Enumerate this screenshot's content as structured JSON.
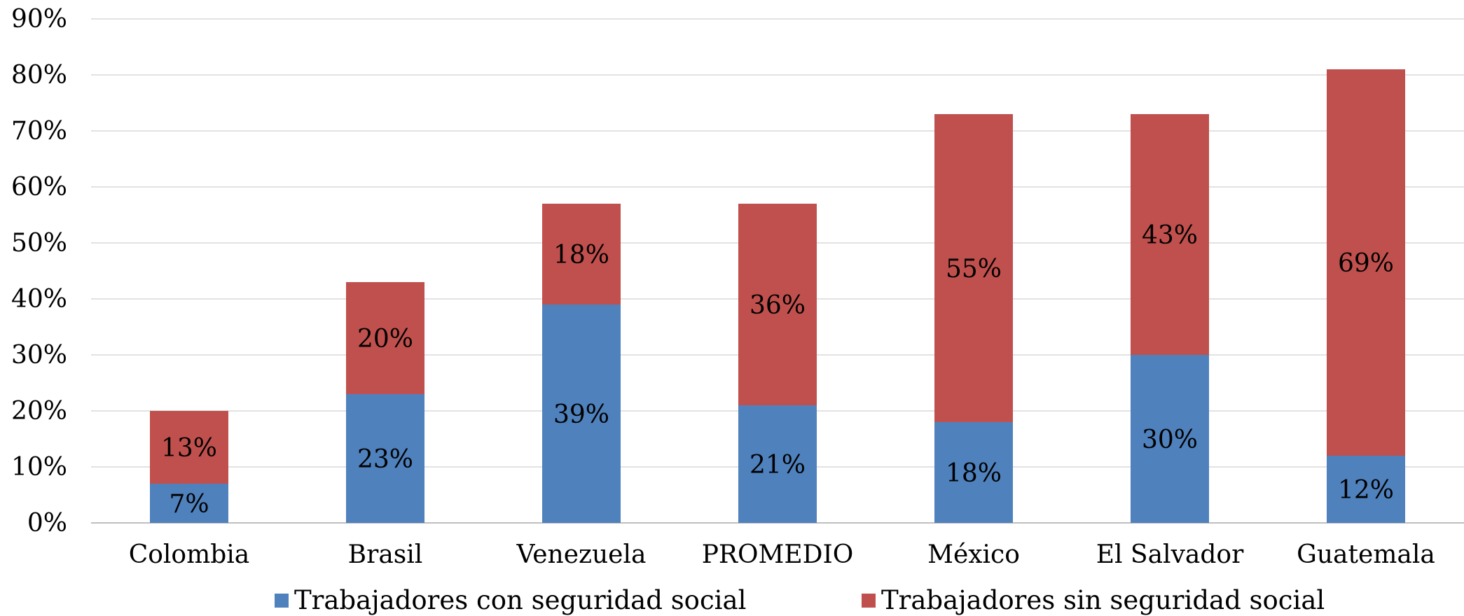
{
  "chart_data": {
    "type": "bar",
    "stacked": true,
    "categories": [
      "Colombia",
      "Brasil",
      "Venezuela",
      "PROMEDIO",
      "México",
      "El Salvador",
      "Guatemala"
    ],
    "series": [
      {
        "name": "Trabajadores con seguridad social",
        "color": "#4F81BD",
        "values": [
          7,
          23,
          39,
          21,
          18,
          30,
          12
        ],
        "labels": [
          "7%",
          "23%",
          "39%",
          "21%",
          "18%",
          "30%",
          "12%"
        ]
      },
      {
        "name": "Trabajadores sin seguridad social",
        "color": "#C0504D",
        "values": [
          13,
          20,
          18,
          36,
          55,
          43,
          69
        ],
        "labels": [
          "13%",
          "20%",
          "18%",
          "36%",
          "55%",
          "43%",
          "69%"
        ]
      }
    ],
    "y_ticks": [
      "0%",
      "10%",
      "20%",
      "30%",
      "40%",
      "50%",
      "60%",
      "70%",
      "80%",
      "90%"
    ],
    "ylim": [
      0,
      90
    ],
    "grid": true,
    "legend_position": "bottom",
    "title": "",
    "xlabel": "",
    "ylabel": ""
  }
}
